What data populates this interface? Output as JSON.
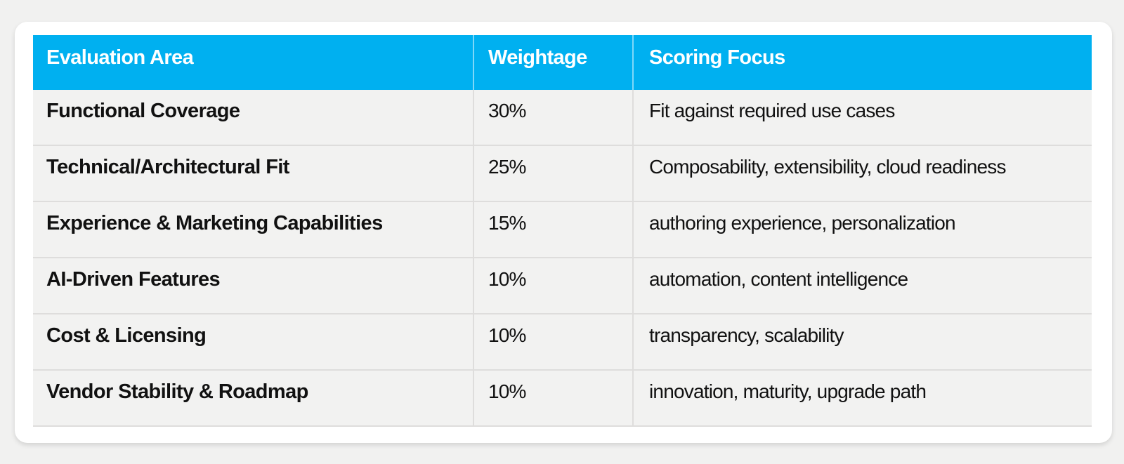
{
  "colors": {
    "page_background": "#F1F1F0",
    "card_background": "#FFFFFF",
    "header_background": "#00B0F0",
    "header_text": "#FFFFFF",
    "row_background": "#F2F2F1",
    "divider": "#DEDDDC",
    "body_text": "#111111"
  },
  "table": {
    "columns": [
      {
        "label": "Evaluation Area"
      },
      {
        "label": "Weightage"
      },
      {
        "label": "Scoring Focus"
      }
    ],
    "rows": [
      {
        "area": "Functional Coverage",
        "weightage": "30%",
        "focus": "Fit against required use cases"
      },
      {
        "area": "Technical/Architectural Fit",
        "weightage": "25%",
        "focus": "Composability, extensibility, cloud readiness"
      },
      {
        "area": "Experience & Marketing Capabilities",
        "weightage": "15%",
        "focus": "authoring experience, personalization"
      },
      {
        "area": "AI-Driven Features",
        "weightage": "10%",
        "focus": "automation, content intelligence"
      },
      {
        "area": "Cost & Licensing",
        "weightage": "10%",
        "focus": "transparency, scalability"
      },
      {
        "area": "Vendor Stability & Roadmap",
        "weightage": "10%",
        "focus": "innovation, maturity, upgrade path"
      }
    ]
  }
}
